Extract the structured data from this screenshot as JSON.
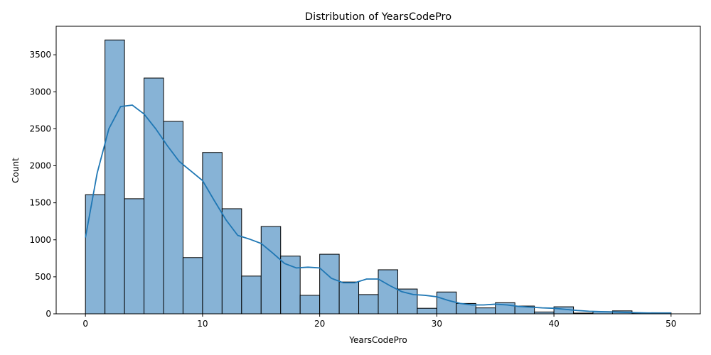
{
  "chart_data": {
    "type": "bar",
    "title": "Distribution of YearsCodePro",
    "xlabel": "YearsCodePro",
    "ylabel": "Count",
    "xlim": [
      -2.5,
      52.5
    ],
    "ylim": [
      0,
      3885
    ],
    "xticks": [
      0,
      10,
      20,
      30,
      40,
      50
    ],
    "yticks": [
      0,
      500,
      1000,
      1500,
      2000,
      2500,
      3000,
      3500
    ],
    "bin_edges": [
      0,
      1.667,
      3.333,
      5.0,
      6.667,
      8.333,
      10.0,
      11.667,
      13.333,
      15.0,
      16.667,
      18.333,
      20.0,
      21.667,
      23.333,
      25.0,
      26.667,
      28.333,
      30.0,
      31.667,
      33.333,
      35.0,
      36.667,
      38.333,
      40.0,
      41.667,
      43.333,
      45.0,
      46.667,
      48.333,
      50.0
    ],
    "counts": [
      1610,
      3700,
      1555,
      3185,
      2600,
      760,
      2180,
      1420,
      510,
      1180,
      780,
      250,
      805,
      430,
      260,
      595,
      335,
      75,
      295,
      140,
      80,
      150,
      105,
      25,
      95,
      10,
      30,
      40,
      10,
      15
    ],
    "kde": {
      "x": [
        0,
        1,
        2,
        3,
        4,
        5,
        6,
        7,
        8,
        9,
        10,
        11,
        12,
        13,
        14,
        15,
        16,
        17,
        18,
        19,
        20,
        21,
        22,
        23,
        24,
        25,
        26,
        27,
        28,
        29,
        30,
        31,
        32,
        33,
        34,
        35,
        36,
        37,
        38,
        39,
        40,
        41,
        42,
        43,
        44,
        45,
        46,
        47,
        48,
        49,
        50
      ],
      "y": [
        1030,
        1900,
        2500,
        2800,
        2820,
        2700,
        2500,
        2270,
        2060,
        1930,
        1800,
        1530,
        1270,
        1060,
        1010,
        950,
        820,
        680,
        620,
        630,
        620,
        480,
        420,
        420,
        470,
        470,
        380,
        300,
        260,
        250,
        230,
        180,
        140,
        120,
        120,
        130,
        120,
        100,
        90,
        80,
        75,
        60,
        45,
        35,
        30,
        25,
        20,
        15,
        12,
        10,
        10
      ]
    },
    "colors": {
      "bar_fill": "#87b3d6",
      "bar_edge": "#000000",
      "kde_line": "#1f77b4"
    },
    "grid": false,
    "legend": "none"
  }
}
